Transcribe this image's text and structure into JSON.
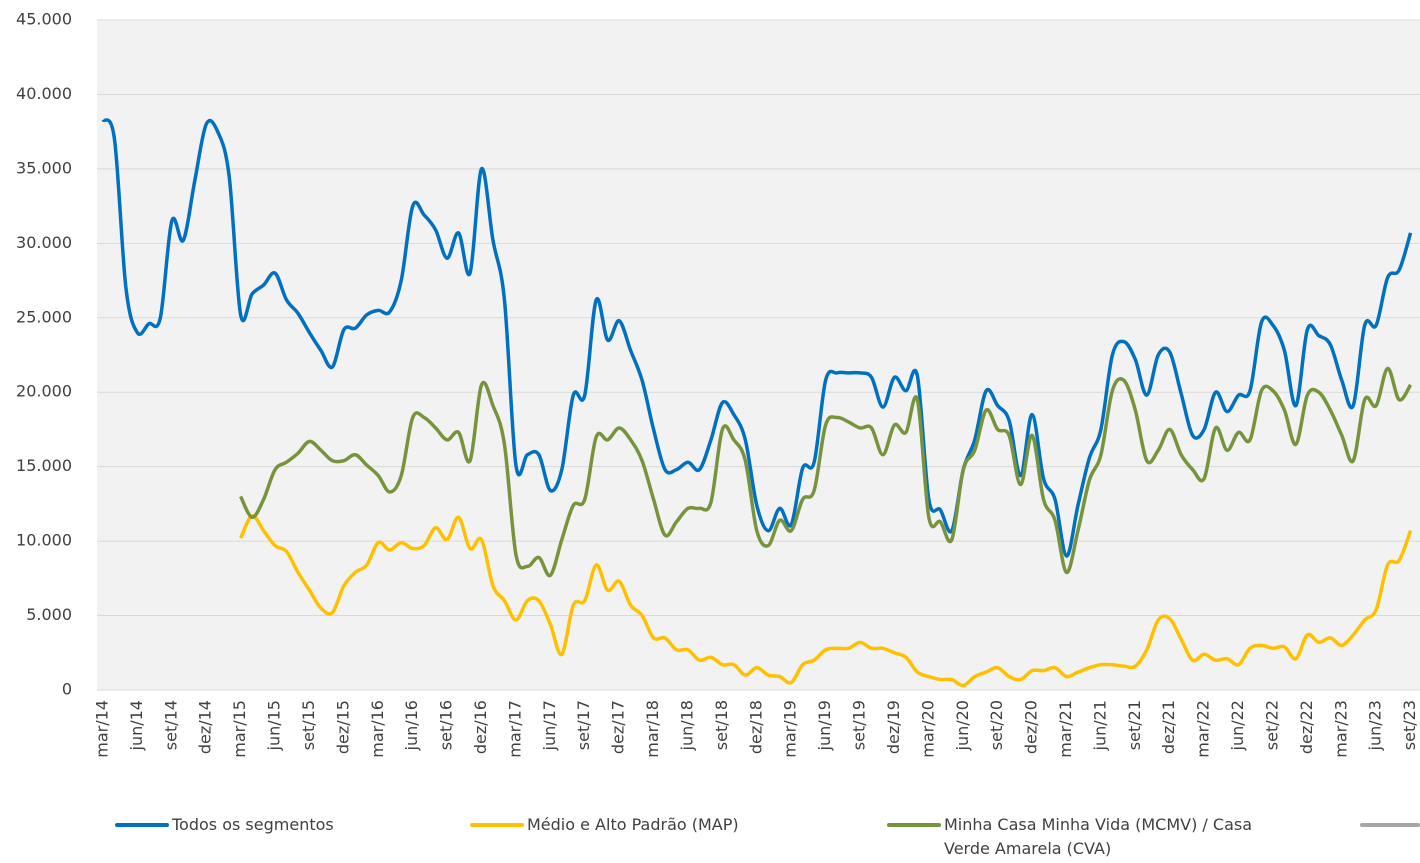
{
  "chart_data": {
    "type": "line",
    "categories": [
      "mar/14",
      null,
      null,
      "jun/14",
      null,
      null,
      "set/14",
      null,
      null,
      "dez/14",
      null,
      null,
      "mar/15",
      null,
      null,
      "jun/15",
      null,
      null,
      "set/15",
      null,
      null,
      "dez/15",
      null,
      null,
      "mar/16",
      null,
      null,
      "jun/16",
      null,
      null,
      "set/16",
      null,
      null,
      "dez/16",
      null,
      null,
      "mar/17",
      null,
      null,
      "jun/17",
      null,
      null,
      "set/17",
      null,
      null,
      "dez/17",
      null,
      null,
      "mar/18",
      null,
      null,
      "jun/18",
      null,
      null,
      "set/18",
      null,
      null,
      "dez/18",
      null,
      null,
      "mar/19",
      null,
      null,
      "jun/19",
      null,
      null,
      "set/19",
      null,
      null,
      "dez/19",
      null,
      null,
      "mar/20",
      null,
      null,
      "jun/20",
      null,
      null,
      "set/20",
      null,
      null,
      "dez/20",
      null,
      null,
      "mar/21",
      null,
      null,
      "jun/21",
      null,
      null,
      "set/21",
      null,
      null,
      "dez/21",
      null,
      null,
      "mar/22",
      null,
      null,
      "jun/22",
      null,
      null,
      "set/22",
      null,
      null,
      "dez/22",
      null,
      null,
      "mar/23",
      null,
      null,
      "jun/23",
      null,
      null,
      "set/23"
    ],
    "series": [
      {
        "name": "Todos os segmentos",
        "color": "#0070c0",
        "values": [
          38300,
          37000,
          27000,
          24000,
          24600,
          25000,
          31500,
          30200,
          34200,
          38000,
          37500,
          34500,
          25200,
          26600,
          27200,
          28000,
          26200,
          25300,
          24000,
          22800,
          21700,
          24200,
          24300,
          25200,
          25500,
          25400,
          27500,
          32500,
          31900,
          30900,
          29000,
          30700,
          28000,
          35000,
          30200,
          26200,
          15100,
          15800,
          15800,
          13400,
          14800,
          19800,
          19800,
          26200,
          23500,
          24800,
          22800,
          20800,
          17500,
          14800,
          14800,
          15300,
          14800,
          16800,
          19300,
          18500,
          16800,
          12400,
          10700,
          12200,
          11100,
          14900,
          15300,
          20800,
          21300,
          21300,
          21300,
          21000,
          19000,
          21000,
          20100,
          21100,
          12800,
          12100,
          10700,
          14800,
          16800,
          20100,
          19100,
          18100,
          14400,
          18500,
          14200,
          12800,
          9000,
          12400,
          15600,
          17500,
          22500,
          23400,
          22200,
          19800,
          22500,
          22700,
          19900,
          17100,
          17500,
          20000,
          18700,
          19800,
          20100,
          24700,
          24500,
          22800,
          19100,
          24200,
          23800,
          23200,
          20800,
          19100,
          24500,
          24500,
          27700,
          28200,
          30700
        ]
      },
      {
        "name": "Médio e Alto Padrão (MAP)",
        "color": "#ffc000",
        "values": [
          null,
          null,
          null,
          null,
          null,
          null,
          null,
          null,
          null,
          null,
          null,
          null,
          10200,
          11700,
          10700,
          9700,
          9300,
          7900,
          6700,
          5500,
          5200,
          7000,
          7900,
          8400,
          9900,
          9400,
          9900,
          9500,
          9700,
          10900,
          10100,
          11600,
          9500,
          10100,
          7000,
          6000,
          4700,
          6000,
          6000,
          4400,
          2400,
          5700,
          6000,
          8400,
          6700,
          7300,
          5700,
          5000,
          3500,
          3500,
          2700,
          2700,
          2000,
          2200,
          1700,
          1700,
          1000,
          1500,
          1000,
          900,
          500,
          1700,
          2000,
          2700,
          2800,
          2800,
          3200,
          2800,
          2800,
          2500,
          2200,
          1200,
          900,
          700,
          700,
          300,
          900,
          1200,
          1500,
          900,
          700,
          1300,
          1300,
          1500,
          900,
          1200,
          1500,
          1700,
          1700,
          1600,
          1600,
          2700,
          4700,
          4800,
          3400,
          2000,
          2400,
          2000,
          2100,
          1700,
          2800,
          3000,
          2800,
          2900,
          2100,
          3700,
          3200,
          3500,
          3000,
          3700,
          4700,
          5400,
          8400,
          8700,
          10700
        ]
      },
      {
        "name": "Minha Casa Minha Vida (MCMV) / Casa Verde Amarela (CVA)",
        "color": "#77933c",
        "values": [
          null,
          null,
          null,
          null,
          null,
          null,
          null,
          null,
          null,
          null,
          null,
          null,
          13000,
          11600,
          12800,
          14800,
          15300,
          15900,
          16700,
          16100,
          15400,
          15400,
          15800,
          15100,
          14400,
          13300,
          14400,
          18300,
          18300,
          17600,
          16800,
          17300,
          15400,
          20500,
          19100,
          16500,
          9100,
          8300,
          8900,
          7700,
          10100,
          12400,
          12800,
          17000,
          16800,
          17600,
          16800,
          15400,
          12800,
          10400,
          11300,
          12200,
          12200,
          12600,
          17500,
          16800,
          15400,
          10700,
          9700,
          11400,
          10700,
          12800,
          13400,
          17800,
          18300,
          18000,
          17600,
          17600,
          15800,
          17800,
          17300,
          19500,
          11600,
          11300,
          10100,
          14800,
          16100,
          18800,
          17500,
          17100,
          13800,
          17100,
          12800,
          11400,
          7900,
          10700,
          14100,
          15800,
          20100,
          20800,
          18800,
          15400,
          16100,
          17500,
          15800,
          14800,
          14200,
          17600,
          16100,
          17300,
          16800,
          20100,
          20100,
          18800,
          16500,
          19800,
          20000,
          18800,
          17100,
          15400,
          19500,
          19100,
          21600,
          19500,
          20500
        ]
      }
    ],
    "ylim": [
      0,
      45000
    ],
    "yticks": [
      {
        "value": 0,
        "label": "0"
      },
      {
        "value": 5000,
        "label": "5.000"
      },
      {
        "value": 10000,
        "label": "10.000"
      },
      {
        "value": 15000,
        "label": "15.000"
      },
      {
        "value": 20000,
        "label": "20.000"
      },
      {
        "value": 25000,
        "label": "25.000"
      },
      {
        "value": 30000,
        "label": "30.000"
      },
      {
        "value": 35000,
        "label": "35.000"
      },
      {
        "value": 40000,
        "label": "40.000"
      },
      {
        "value": 45000,
        "label": "45.000"
      }
    ],
    "grid": true
  }
}
